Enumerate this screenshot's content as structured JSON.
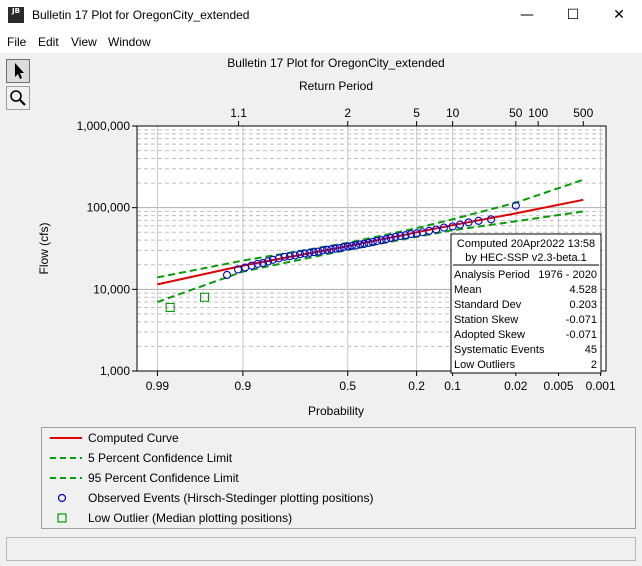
{
  "window": {
    "title": "Bulletin 17 Plot for OregonCity_extended",
    "app_icon_label": "JB",
    "minimize": "—",
    "maximize": "☐",
    "close": "✕"
  },
  "menu": [
    "File",
    "Edit",
    "View",
    "Window"
  ],
  "tools": [
    {
      "name": "pointer-icon",
      "active": true
    },
    {
      "name": "zoom-icon",
      "active": false
    }
  ],
  "chart_data": {
    "type": "line",
    "title": "Bulletin 17 Plot for OregonCity_extended",
    "top_axis_label": "Return Period",
    "top_ticks": [
      "1.1",
      "2",
      "5",
      "10",
      "50",
      "100",
      "500"
    ],
    "top_tick_probs": [
      0.909,
      0.5,
      0.2,
      0.1,
      0.02,
      0.01,
      0.002
    ],
    "xlabel": "Probability",
    "x_ticks": [
      "0.99",
      "0.9",
      "0.5",
      "0.2",
      "0.1",
      "0.02",
      "0.005",
      "0.001"
    ],
    "x_tick_probs": [
      0.99,
      0.9,
      0.5,
      0.2,
      0.1,
      0.02,
      0.005,
      0.001
    ],
    "ylabel": "Flow (cfs)",
    "y_scale": "log",
    "ylim": [
      1000,
      1000000
    ],
    "y_ticks": [
      "1,000",
      "10,000",
      "100,000",
      "1,000,000"
    ],
    "grid": true,
    "series": [
      {
        "name": "Computed Curve",
        "color": "#e00000",
        "dash": false,
        "x": [
          0.99,
          0.9,
          0.5,
          0.2,
          0.1,
          0.02,
          0.002
        ],
        "y": [
          11500,
          19500,
          33700,
          50000,
          61000,
          85000,
          125000
        ]
      },
      {
        "name": "5 Percent Confidence Limit",
        "color": "#00a000",
        "dash": true,
        "x": [
          0.99,
          0.9,
          0.5,
          0.2,
          0.1,
          0.02,
          0.002
        ],
        "y": [
          14000,
          22500,
          37000,
          56000,
          72000,
          115000,
          220000
        ]
      },
      {
        "name": "95 Percent Confidence Limit",
        "color": "#00a000",
        "dash": true,
        "x": [
          0.99,
          0.9,
          0.5,
          0.2,
          0.1,
          0.02,
          0.002
        ],
        "y": [
          7000,
          16500,
          30500,
          44000,
          53000,
          68000,
          90000
        ]
      }
    ],
    "observed": {
      "name": "Observed Events (Hirsch-Stedinger plotting positions)",
      "color": "#0000d0",
      "x": [
        0.93,
        0.91,
        0.895,
        0.88,
        0.865,
        0.85,
        0.835,
        0.82,
        0.8,
        0.78,
        0.76,
        0.74,
        0.72,
        0.7,
        0.68,
        0.66,
        0.64,
        0.62,
        0.6,
        0.58,
        0.56,
        0.54,
        0.52,
        0.5,
        0.48,
        0.46,
        0.44,
        0.42,
        0.4,
        0.38,
        0.36,
        0.34,
        0.32,
        0.3,
        0.28,
        0.26,
        0.24,
        0.22,
        0.2,
        0.18,
        0.16,
        0.14,
        0.12,
        0.1,
        0.085,
        0.07,
        0.055,
        0.04,
        0.02
      ],
      "y": [
        15000,
        17500,
        18500,
        19500,
        20500,
        21000,
        22000,
        23000,
        24000,
        25000,
        25500,
        26000,
        27000,
        27500,
        28000,
        28500,
        29000,
        30000,
        30500,
        31000,
        31500,
        32000,
        33000,
        33500,
        34000,
        34500,
        35500,
        36000,
        37000,
        38000,
        39000,
        40000,
        41000,
        42500,
        44000,
        45000,
        46000,
        47500,
        48500,
        50000,
        52000,
        54000,
        57000,
        59000,
        62000,
        66000,
        69000,
        72000,
        106000
      ]
    },
    "low_outliers": {
      "name": "Low Outlier (Median plotting positions)",
      "color": "#00a000",
      "x": [
        0.985,
        0.96
      ],
      "y": [
        6000,
        8000
      ]
    },
    "stats_box": {
      "header1": "Computed 20Apr2022 13:58",
      "header2": "by HEC-SSP v2.3-beta.1",
      "rows": [
        [
          "Analysis Period",
          "1976 - 2020"
        ],
        [
          "Mean",
          "4.528"
        ],
        [
          "Standard Dev",
          "0.203"
        ],
        [
          "Station Skew",
          "-0.071"
        ],
        [
          "Adopted Skew",
          "-0.071"
        ],
        [
          "Systematic Events",
          "45"
        ],
        [
          "Low Outliers",
          "2"
        ]
      ]
    }
  },
  "legend": [
    {
      "label": "Computed Curve",
      "kind": "line",
      "color": "#e00000"
    },
    {
      "label": "5 Percent Confidence Limit",
      "kind": "dash",
      "color": "#00a000"
    },
    {
      "label": "95 Percent Confidence Limit",
      "kind": "dash",
      "color": "#00a000"
    },
    {
      "label": "Observed Events (Hirsch-Stedinger plotting positions)",
      "kind": "circle",
      "color": "#0000d0"
    },
    {
      "label": "Low Outlier (Median plotting positions)",
      "kind": "square",
      "color": "#00a000"
    }
  ],
  "status": ""
}
